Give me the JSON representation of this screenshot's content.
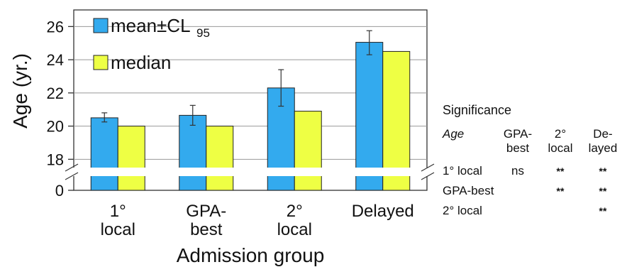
{
  "chart_data": {
    "type": "bar",
    "xlabel": "Admission group",
    "ylabel": "Age (yr.)",
    "categories": [
      [
        "1°",
        "local"
      ],
      [
        "GPA-",
        "best"
      ],
      [
        "2°",
        "local"
      ],
      [
        "Delayed"
      ]
    ],
    "y_ticks": [
      "26",
      "24",
      "22",
      "20",
      "18",
      "0"
    ],
    "ylim": [
      17.5,
      27
    ],
    "axis_break": {
      "lower": 0,
      "upper": 17.5
    },
    "series": [
      {
        "name": "mean±CL",
        "name_sub": "95",
        "color": "#33aaee",
        "values": [
          20.5,
          20.65,
          22.3,
          25.05
        ],
        "err_low": [
          20.25,
          20.05,
          21.2,
          24.3
        ],
        "err_high": [
          20.8,
          21.25,
          23.4,
          25.75
        ]
      },
      {
        "name": "median",
        "color": "#eeff44",
        "values": [
          20.0,
          20.0,
          20.9,
          24.5
        ]
      }
    ],
    "legend_position": "top-left",
    "grid": "horizontal"
  },
  "significance": {
    "title": "Significance",
    "row_header": "Age",
    "columns": [
      [
        "GPA-",
        "best"
      ],
      [
        "2°",
        "local"
      ],
      [
        "De-",
        "layed"
      ]
    ],
    "rows": [
      {
        "label": "1° local",
        "cells": [
          "ns",
          "**",
          "**"
        ]
      },
      {
        "label": "GPA-best",
        "cells": [
          "",
          "**",
          "**"
        ]
      },
      {
        "label": "2° local",
        "cells": [
          "",
          "",
          "**"
        ]
      }
    ]
  }
}
